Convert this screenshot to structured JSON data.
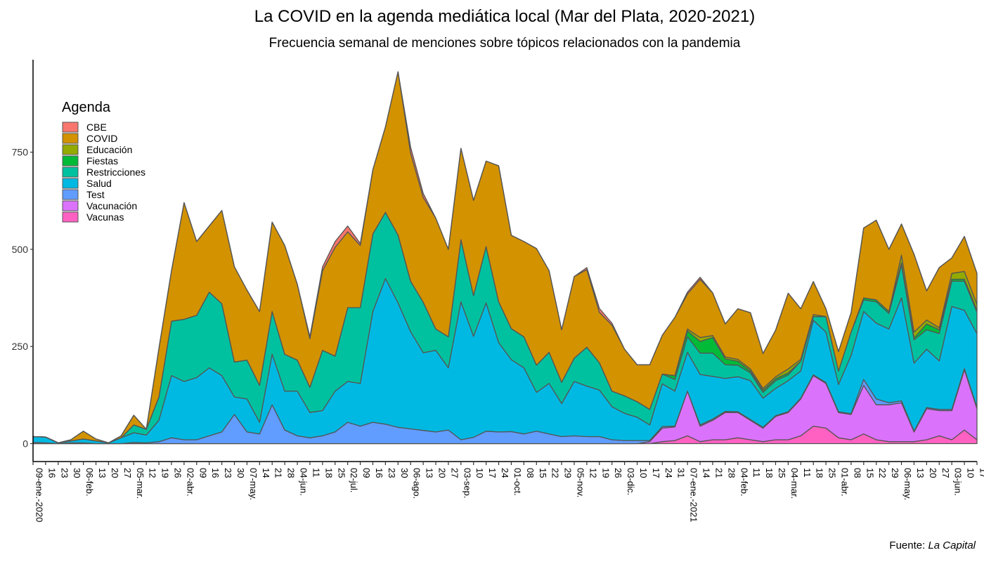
{
  "chart_data": {
    "type": "area",
    "title": "La COVID en la agenda mediática local (Mar del Plata, 2020-2021)",
    "subtitle": "Frecuencia semanal de menciones sobre tópicos relacionados con la pandemia",
    "source": {
      "prefix": "Fuente: ",
      "name": "La Capital"
    },
    "xlabel": "",
    "ylabel": "",
    "ylim": [
      0,
      950
    ],
    "yticks": [
      0,
      250,
      500,
      750
    ],
    "stacked": true,
    "legend": {
      "title": "Agenda",
      "position": "top-left"
    },
    "x_labels": [
      "09-ene.-2020",
      "16",
      "23",
      "30",
      "06-feb.",
      "13",
      "20",
      "27",
      "05-mar.",
      "12",
      "19",
      "26",
      "02-abr.",
      "09",
      "16",
      "23",
      "30",
      "07-may.",
      "14",
      "21",
      "28",
      "04-jun.",
      "11",
      "18",
      "25",
      "02-jul.",
      "09",
      "16",
      "23",
      "30",
      "06-ago.",
      "13",
      "20",
      "27",
      "03-sep.",
      "10",
      "17",
      "24",
      "01-oct.",
      "08",
      "15",
      "22",
      "29",
      "05-nov.",
      "12",
      "19",
      "26",
      "03-dic.",
      "10",
      "17",
      "24",
      "31",
      "07-ene.-2021",
      "14",
      "21",
      "28",
      "04-feb.",
      "11",
      "18",
      "25",
      "04-mar.",
      "11",
      "18",
      "25",
      "01-abr.",
      "08",
      "15",
      "22",
      "29",
      "06-may.",
      "13",
      "20",
      "27",
      "03-jun.",
      "10",
      "17"
    ],
    "series": [
      {
        "name": "Vacunas",
        "color": "#FF61C3",
        "values": [
          0,
          0,
          0,
          0,
          0,
          0,
          0,
          0,
          0,
          0,
          0,
          0,
          0,
          0,
          0,
          0,
          0,
          0,
          0,
          0,
          0,
          0,
          0,
          0,
          0,
          0,
          0,
          0,
          0,
          0,
          0,
          0,
          0,
          0,
          0,
          0,
          0,
          0,
          0,
          0,
          0,
          0,
          0,
          0,
          0,
          0,
          0,
          0,
          0,
          0,
          5,
          8,
          20,
          5,
          10,
          10,
          15,
          10,
          5,
          10,
          10,
          20,
          45,
          40,
          15,
          10,
          25,
          10,
          5,
          5,
          5,
          10,
          20,
          10,
          35,
          10,
          25
        ]
      },
      {
        "name": "Vacunación",
        "color": "#DB72FB",
        "values": [
          0,
          0,
          0,
          0,
          0,
          0,
          0,
          0,
          0,
          0,
          0,
          0,
          0,
          0,
          0,
          0,
          0,
          0,
          0,
          0,
          0,
          0,
          0,
          0,
          0,
          0,
          0,
          0,
          0,
          0,
          0,
          0,
          0,
          0,
          0,
          0,
          0,
          0,
          0,
          0,
          0,
          0,
          0,
          0,
          0,
          0,
          0,
          0,
          0,
          5,
          35,
          35,
          115,
          40,
          50,
          70,
          65,
          50,
          35,
          60,
          70,
          95,
          130,
          115,
          65,
          65,
          125,
          90,
          95,
          100,
          25,
          80,
          65,
          75,
          155,
          80,
          110
        ]
      },
      {
        "name": "Test",
        "color": "#619CFF",
        "values": [
          3,
          2,
          0,
          2,
          2,
          0,
          0,
          0,
          3,
          2,
          5,
          15,
          10,
          10,
          20,
          30,
          75,
          30,
          25,
          100,
          35,
          20,
          15,
          20,
          30,
          55,
          45,
          55,
          50,
          42,
          38,
          34,
          30,
          35,
          10,
          16,
          32,
          30,
          31,
          25,
          32,
          25,
          18,
          20,
          18,
          18,
          10,
          8,
          8,
          3,
          4,
          2,
          0,
          3,
          3,
          3,
          2,
          2,
          2,
          2,
          2,
          2,
          2,
          2,
          2,
          2,
          15,
          15,
          5,
          5,
          2,
          3,
          3,
          3,
          3,
          3,
          3
        ]
      },
      {
        "name": "Salud",
        "color": "#00B9E3",
        "values": [
          15,
          15,
          2,
          5,
          10,
          7,
          2,
          15,
          25,
          20,
          55,
          160,
          150,
          160,
          175,
          145,
          45,
          85,
          30,
          130,
          100,
          115,
          65,
          65,
          105,
          105,
          110,
          285,
          375,
          320,
          250,
          200,
          210,
          160,
          355,
          260,
          330,
          230,
          185,
          170,
          100,
          130,
          85,
          140,
          130,
          120,
          85,
          70,
          60,
          40,
          110,
          90,
          100,
          130,
          110,
          85,
          90,
          100,
          75,
          70,
          80,
          70,
          140,
          130,
          70,
          150,
          175,
          195,
          190,
          265,
          175,
          150,
          125,
          265,
          150,
          190,
          140
        ]
      },
      {
        "name": "Restricciones",
        "color": "#00C19F",
        "values": [
          0,
          0,
          0,
          0,
          0,
          0,
          0,
          0,
          20,
          15,
          60,
          140,
          160,
          160,
          195,
          185,
          90,
          100,
          95,
          110,
          95,
          80,
          65,
          155,
          90,
          190,
          195,
          200,
          170,
          175,
          130,
          130,
          55,
          80,
          160,
          105,
          145,
          105,
          80,
          80,
          70,
          80,
          55,
          60,
          100,
          70,
          40,
          45,
          40,
          40,
          25,
          30,
          40,
          55,
          60,
          35,
          30,
          20,
          15,
          20,
          15,
          25,
          10,
          40,
          35,
          60,
          30,
          55,
          40,
          85,
          60,
          50,
          70,
          65,
          75,
          55,
          45
        ]
      },
      {
        "name": "Fiestas",
        "color": "#00BA38",
        "values": [
          0,
          0,
          0,
          0,
          0,
          0,
          0,
          0,
          0,
          0,
          0,
          0,
          0,
          0,
          0,
          0,
          0,
          0,
          0,
          0,
          0,
          0,
          0,
          0,
          0,
          0,
          0,
          0,
          0,
          0,
          0,
          0,
          0,
          0,
          0,
          0,
          0,
          0,
          0,
          0,
          0,
          0,
          0,
          0,
          0,
          0,
          0,
          0,
          0,
          0,
          0,
          10,
          15,
          30,
          40,
          15,
          10,
          5,
          5,
          5,
          5,
          0,
          0,
          0,
          0,
          0,
          5,
          5,
          5,
          5,
          5,
          15,
          10,
          5,
          5,
          5,
          5
        ]
      },
      {
        "name": "Educación",
        "color": "#93AA00",
        "values": [
          0,
          0,
          0,
          0,
          0,
          0,
          0,
          0,
          0,
          0,
          0,
          0,
          0,
          0,
          0,
          0,
          0,
          0,
          0,
          0,
          0,
          0,
          0,
          0,
          0,
          0,
          0,
          0,
          0,
          0,
          0,
          0,
          0,
          0,
          0,
          0,
          0,
          0,
          0,
          0,
          0,
          0,
          0,
          0,
          0,
          0,
          0,
          0,
          0,
          0,
          0,
          0,
          5,
          10,
          5,
          5,
          5,
          5,
          5,
          5,
          10,
          5,
          5,
          0,
          0,
          0,
          0,
          0,
          0,
          20,
          15,
          10,
          5,
          15,
          20,
          15,
          40
        ]
      },
      {
        "name": "COVID",
        "color": "#D39200",
        "values": [
          0,
          0,
          0,
          3,
          20,
          5,
          0,
          5,
          25,
          0,
          125,
          130,
          300,
          190,
          170,
          240,
          245,
          180,
          190,
          230,
          280,
          195,
          125,
          205,
          280,
          195,
          160,
          165,
          220,
          420,
          330,
          270,
          285,
          225,
          235,
          245,
          220,
          350,
          240,
          245,
          300,
          210,
          135,
          210,
          200,
          130,
          170,
          120,
          95,
          115,
          100,
          150,
          90,
          150,
          110,
          85,
          130,
          145,
          90,
          120,
          195,
          130,
          85,
          20,
          50,
          50,
          180,
          205,
          160,
          80,
          200,
          75,
          155,
          40,
          90,
          80,
          175
        ]
      },
      {
        "name": "CBE",
        "color": "#F8766D",
        "values": [
          0,
          0,
          0,
          0,
          0,
          0,
          0,
          0,
          0,
          0,
          0,
          0,
          0,
          0,
          0,
          0,
          0,
          0,
          0,
          0,
          0,
          0,
          5,
          10,
          15,
          15,
          5,
          0,
          0,
          0,
          15,
          10,
          0,
          0,
          0,
          0,
          0,
          0,
          0,
          0,
          0,
          0,
          0,
          0,
          5,
          10,
          5,
          0,
          0,
          0,
          0,
          0,
          5,
          5,
          0,
          0,
          0,
          0,
          0,
          0,
          0,
          0,
          0,
          0,
          0,
          0,
          0,
          0,
          0,
          0,
          0,
          0,
          0,
          0,
          0,
          0,
          0
        ]
      }
    ]
  }
}
